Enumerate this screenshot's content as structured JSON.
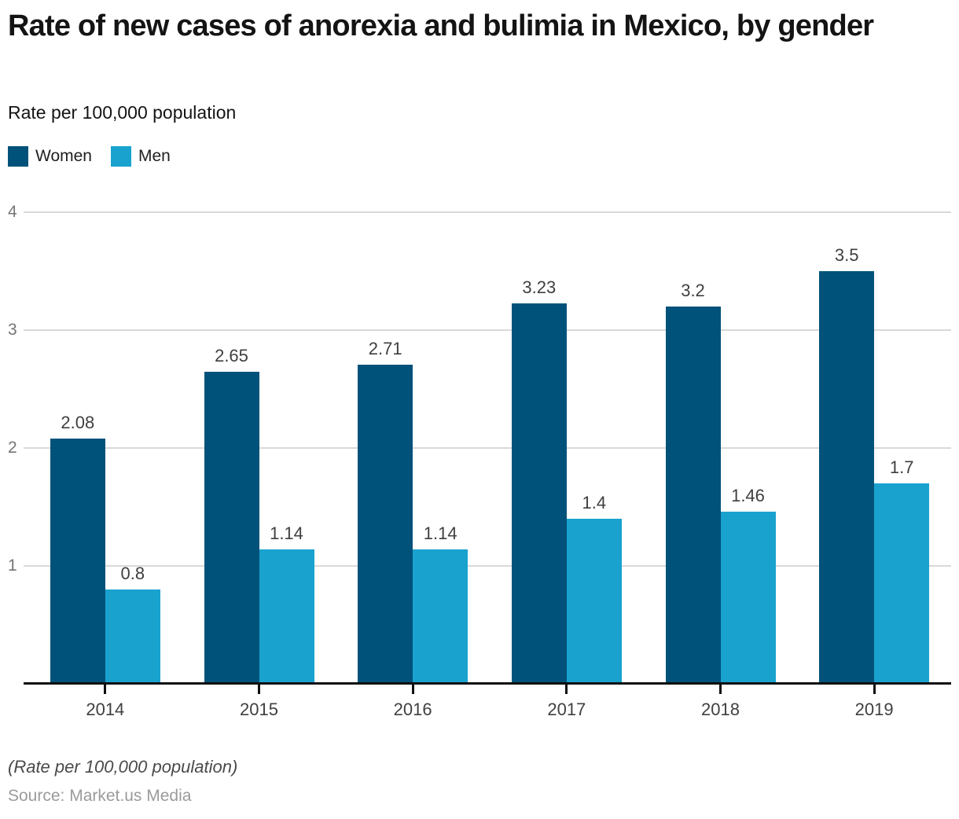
{
  "title": "Rate of new cases of anorexia and bulimia in Mexico, by gender",
  "subtitle": "Rate per 100,000 population",
  "legend": [
    {
      "label": "Women",
      "color": "#00527a"
    },
    {
      "label": "Men",
      "color": "#1aa2cf"
    }
  ],
  "footer": {
    "note": "(Rate per 100,000 population)",
    "source": "Source: Market.us Media"
  },
  "chart_data": {
    "type": "bar",
    "title": "Rate of new cases of anorexia and bulimia in Mexico, by gender",
    "ylabel": "Rate per 100,000 population",
    "xlabel": "",
    "categories": [
      "2014",
      "2015",
      "2016",
      "2017",
      "2018",
      "2019"
    ],
    "series": [
      {
        "name": "Women",
        "color": "#00527a",
        "values": [
          2.08,
          2.65,
          2.71,
          3.23,
          3.2,
          3.5
        ]
      },
      {
        "name": "Men",
        "color": "#1aa2cf",
        "values": [
          0.8,
          1.14,
          1.14,
          1.4,
          1.46,
          1.7
        ]
      }
    ],
    "ylim": [
      0,
      4
    ],
    "yticks": [
      4,
      3,
      2,
      1
    ],
    "grid": true,
    "legend_position": "top-left",
    "value_labels": true
  }
}
